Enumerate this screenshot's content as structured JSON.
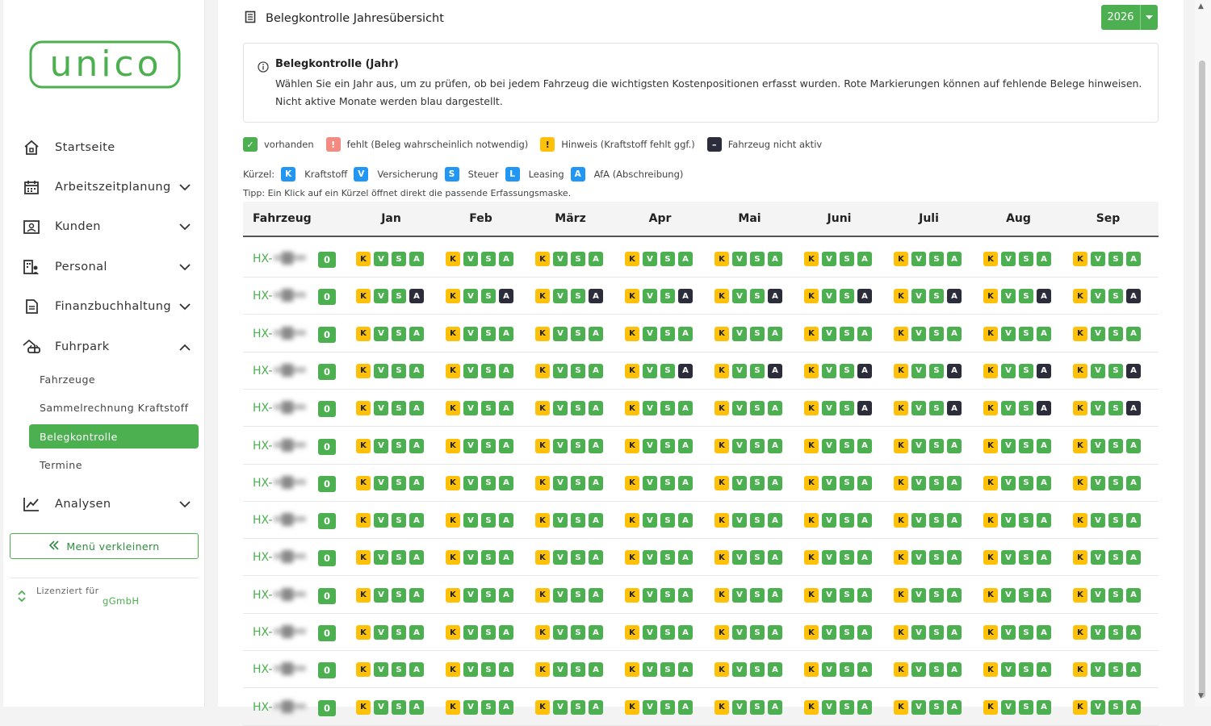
{
  "sidebar": {
    "logo_text": "unico",
    "nav": [
      {
        "label": "Startseite",
        "icon": "home-icon",
        "chevron": ""
      },
      {
        "label": "Arbeitszeitplanung",
        "icon": "calendar-icon",
        "chevron": "down"
      },
      {
        "label": "Kunden",
        "icon": "contact-card-icon",
        "chevron": "down"
      },
      {
        "label": "Personal",
        "icon": "staff-building-icon",
        "chevron": "down"
      },
      {
        "label": "Finanzbuchhaltung",
        "icon": "document-icon",
        "chevron": "down"
      },
      {
        "label": "Fuhrpark",
        "icon": "car-garage-icon",
        "chevron": "up"
      },
      {
        "label": "Analysen",
        "icon": "chart-line-icon",
        "chevron": "down"
      }
    ],
    "sub": [
      {
        "label": "Fahrzeuge",
        "active": false
      },
      {
        "label": "Sammelrechnung Kraftstoff",
        "active": false
      },
      {
        "label": "Belegkontrolle",
        "active": true
      },
      {
        "label": "Termine",
        "active": false
      }
    ],
    "collapse_label": "Menü verkleinern",
    "license_label": "Lizenziert für",
    "license_name": "gGmbH"
  },
  "header": {
    "title": "Belegkontrolle Jahresübersicht",
    "year": "2026"
  },
  "info": {
    "title": "Belegkontrolle (Jahr)",
    "text": "Wählen Sie ein Jahr aus, um zu prüfen, ob bei jedem Fahrzeug die wichtigsten Kostenpositionen erfasst wurden. Rote Markierungen können auf fehlende Belege hinweisen. Nicht aktive Monate werden blau dargestellt."
  },
  "legend": [
    {
      "symbol": "✓",
      "label": "vorhanden",
      "color": "#4caf50"
    },
    {
      "symbol": "!",
      "label": "fehlt (Beleg wahrscheinlich notwendig)",
      "color": "#f28b82"
    },
    {
      "symbol": "!",
      "label": "Hinweis (Kraftstoff fehlt ggf.)",
      "color": "#ffc107"
    },
    {
      "symbol": "–",
      "label": "Fahrzeug nicht aktiv",
      "color": "#2b2d3a"
    }
  ],
  "abbr": {
    "prefix": "Kürzel:",
    "items": [
      {
        "key": "K",
        "label": "Kraftstoff"
      },
      {
        "key": "V",
        "label": "Versicherung"
      },
      {
        "key": "S",
        "label": "Steuer"
      },
      {
        "key": "L",
        "label": "Leasing"
      },
      {
        "key": "A",
        "label": "AfA (Abschreibung)"
      }
    ]
  },
  "tip": "Tipp: Ein Klick auf ein Kürzel öffnet direkt die passende Erfassungsmaske.",
  "table": {
    "headers": [
      "Fahrzeug",
      "Jan",
      "Feb",
      "März",
      "Apr",
      "Mai",
      "Juni",
      "Juli",
      "Aug",
      "Sep"
    ],
    "rows": [
      {
        "plate": "HX-",
        "count": "0",
        "inactive_from": 99
      },
      {
        "plate": "HX-",
        "count": "0",
        "inactive_from": 0
      },
      {
        "plate": "HX-",
        "count": "0",
        "inactive_from": 99
      },
      {
        "plate": "HX-",
        "count": "0",
        "inactive_from": 3
      },
      {
        "plate": "HX-",
        "count": "0",
        "inactive_from": 5
      },
      {
        "plate": "HX-",
        "count": "0",
        "inactive_from": 99
      },
      {
        "plate": "HX-",
        "count": "0",
        "inactive_from": 99
      },
      {
        "plate": "HX-",
        "count": "0",
        "inactive_from": 99
      },
      {
        "plate": "HX-",
        "count": "0",
        "inactive_from": 99
      },
      {
        "plate": "HX-",
        "count": "0",
        "inactive_from": 99
      },
      {
        "plate": "HX-",
        "count": "0",
        "inactive_from": 99
      },
      {
        "plate": "HX-",
        "count": "0",
        "inactive_from": 99
      },
      {
        "plate": "HX-",
        "count": "0",
        "inactive_from": 99
      }
    ],
    "badge_keys": [
      "K",
      "V",
      "S",
      "A"
    ]
  }
}
